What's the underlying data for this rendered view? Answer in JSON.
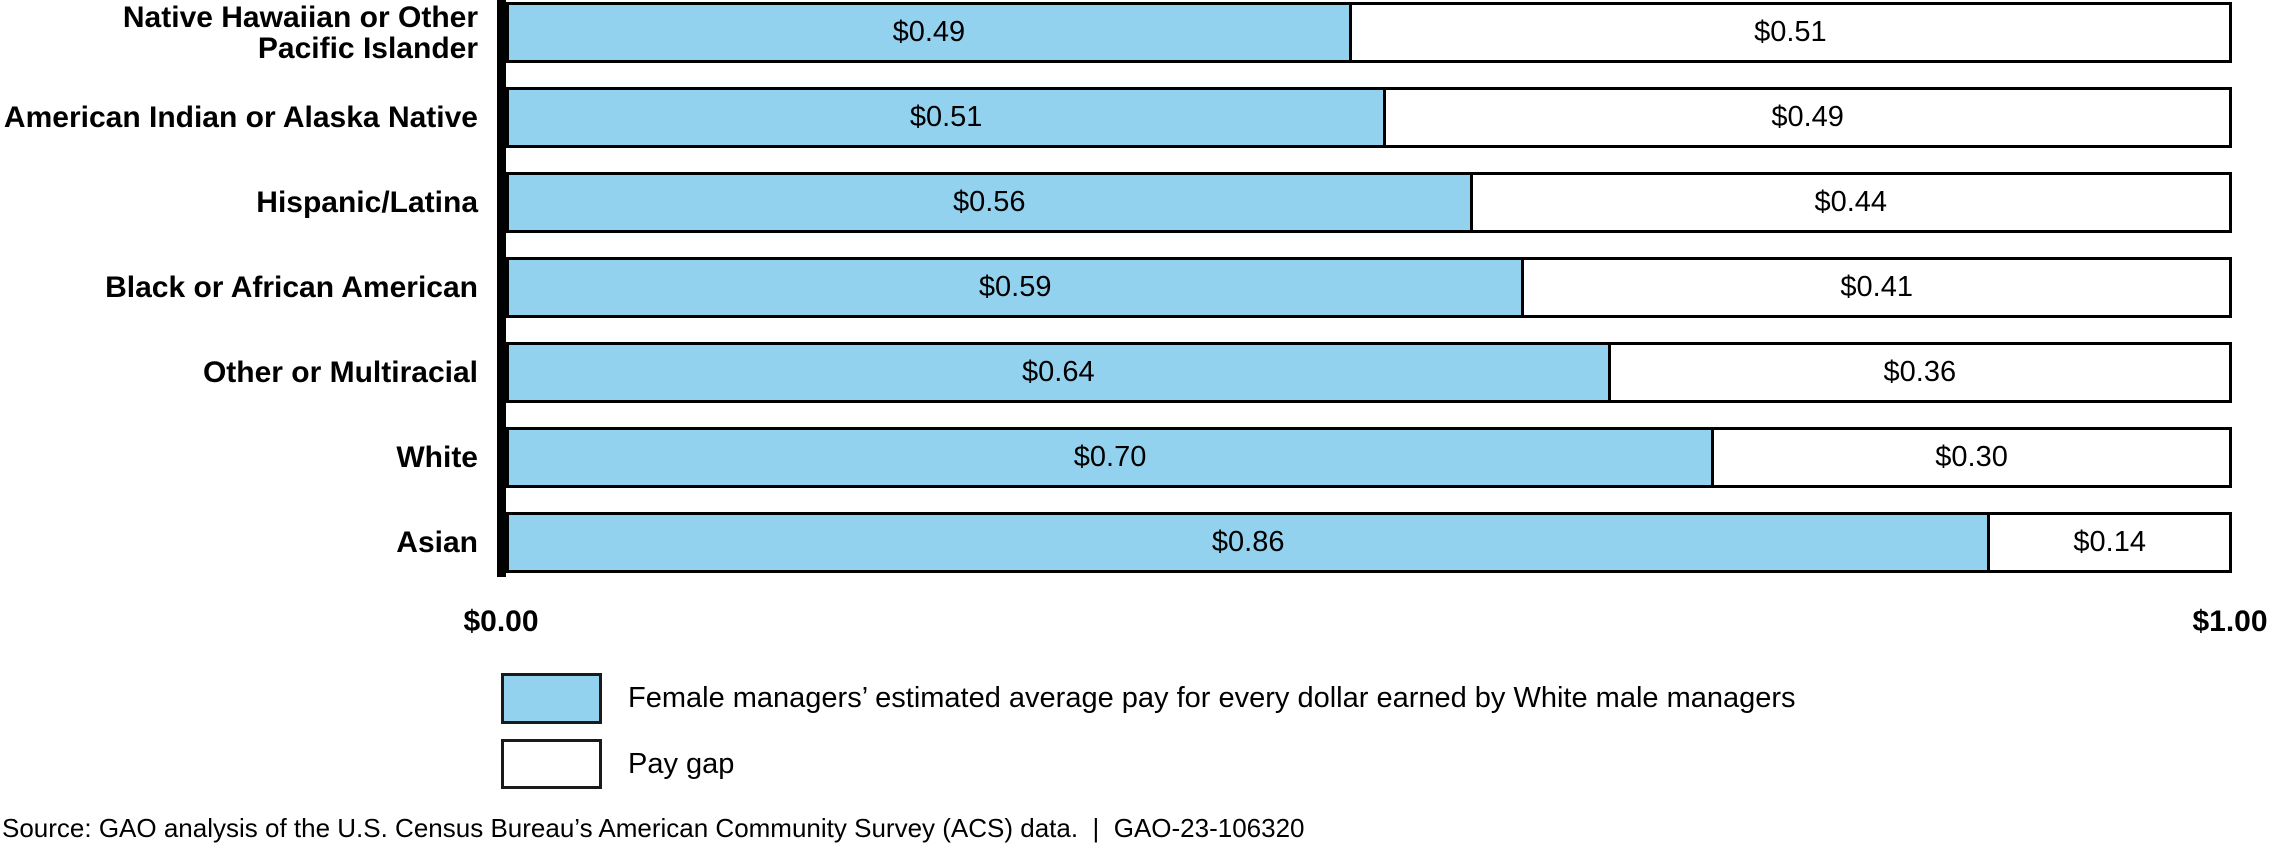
{
  "chart_data": {
    "type": "bar",
    "orientation": "horizontal-stacked",
    "categories": [
      "Native Hawaiian or Other\nPacific Islander",
      "American Indian or Alaska Native",
      "Hispanic/Latina",
      "Black or African American",
      "Other or Multiracial",
      "White",
      "Asian"
    ],
    "series": [
      {
        "name": "Female managers’ estimated average pay for every dollar earned by White male managers",
        "values": [
          0.49,
          0.51,
          0.56,
          0.59,
          0.64,
          0.7,
          0.86
        ],
        "labels": [
          "$0.49",
          "$0.51",
          "$0.56",
          "$0.59",
          "$0.64",
          "$0.70",
          "$0.86"
        ],
        "color": "#92d2ef"
      },
      {
        "name": "Pay gap",
        "values": [
          0.51,
          0.49,
          0.44,
          0.41,
          0.36,
          0.3,
          0.14
        ],
        "labels": [
          "$0.51",
          "$0.49",
          "$0.44",
          "$0.41",
          "$0.36",
          "$0.30",
          "$0.14"
        ],
        "color": "#ffffff"
      }
    ],
    "xlim": [
      0,
      1
    ],
    "x_axis_tick_labels": [
      "$0.00",
      "$1.00"
    ],
    "grid": false,
    "legend_position": "bottom-left",
    "value_labels_shown": true
  },
  "axis": {
    "min_label": "$0.00",
    "max_label": "$1.00"
  },
  "legend": {
    "items": [
      {
        "label": "Female managers’ estimated average pay for every dollar earned by White male managers",
        "swatch_color": "#92d2ef"
      },
      {
        "label": "Pay gap",
        "swatch_color": "#ffffff"
      }
    ]
  },
  "source": {
    "text": "Source: GAO analysis of the U.S. Census Bureau’s American Community Survey (ACS) data.  |  GAO-23-106320"
  },
  "colors": {
    "bar_fill": "#92d2ef",
    "gap_fill": "#ffffff",
    "border": "#000000",
    "text": "#000000",
    "background": "#ffffff"
  }
}
